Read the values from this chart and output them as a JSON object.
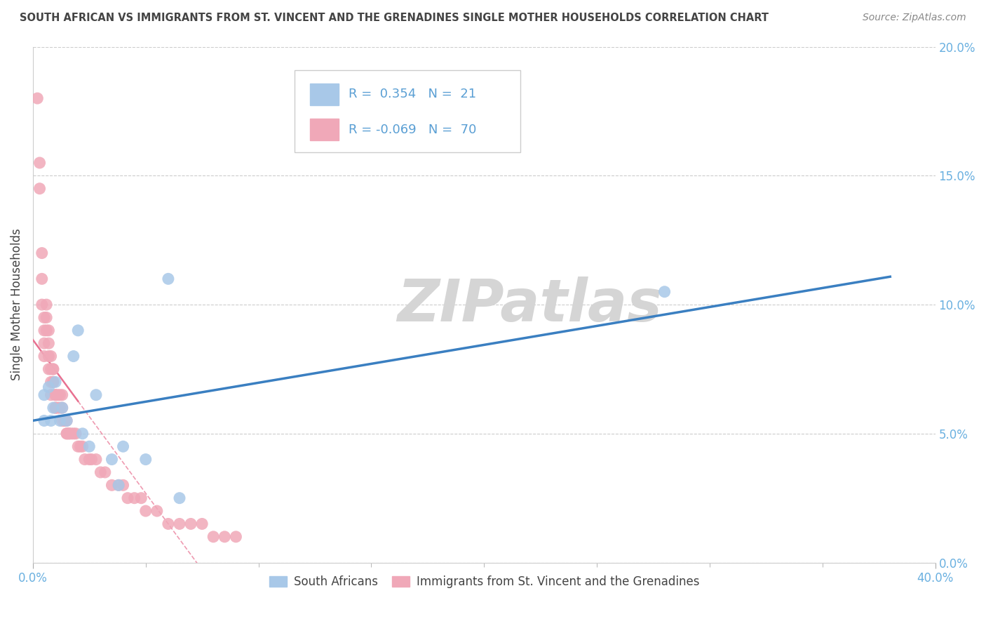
{
  "title": "SOUTH AFRICAN VS IMMIGRANTS FROM ST. VINCENT AND THE GRENADINES SINGLE MOTHER HOUSEHOLDS CORRELATION CHART",
  "source": "Source: ZipAtlas.com",
  "ylabel": "Single Mother Households",
  "watermark": "ZIPatlas",
  "blue_R": 0.354,
  "blue_N": 21,
  "pink_R": -0.069,
  "pink_N": 70,
  "xlim": [
    0.0,
    0.4
  ],
  "ylim": [
    0.0,
    0.2
  ],
  "xtick_vals": [
    0.0,
    0.4
  ],
  "xtick_minor": [
    0.05,
    0.1,
    0.15,
    0.2,
    0.25,
    0.3,
    0.35
  ],
  "ytick_vals": [
    0.0,
    0.05,
    0.1,
    0.15,
    0.2
  ],
  "blue_scatter_x": [
    0.005,
    0.005,
    0.007,
    0.008,
    0.009,
    0.01,
    0.012,
    0.013,
    0.015,
    0.018,
    0.02,
    0.022,
    0.025,
    0.028,
    0.035,
    0.038,
    0.04,
    0.05,
    0.06,
    0.065,
    0.28
  ],
  "blue_scatter_y": [
    0.065,
    0.055,
    0.068,
    0.055,
    0.06,
    0.07,
    0.055,
    0.06,
    0.055,
    0.08,
    0.09,
    0.05,
    0.045,
    0.065,
    0.04,
    0.03,
    0.045,
    0.04,
    0.11,
    0.025,
    0.105
  ],
  "pink_scatter_x": [
    0.002,
    0.003,
    0.003,
    0.004,
    0.004,
    0.004,
    0.005,
    0.005,
    0.005,
    0.005,
    0.006,
    0.006,
    0.006,
    0.007,
    0.007,
    0.007,
    0.007,
    0.008,
    0.008,
    0.008,
    0.008,
    0.009,
    0.009,
    0.009,
    0.009,
    0.01,
    0.01,
    0.01,
    0.01,
    0.011,
    0.011,
    0.012,
    0.012,
    0.013,
    0.013,
    0.013,
    0.014,
    0.014,
    0.015,
    0.015,
    0.015,
    0.016,
    0.016,
    0.017,
    0.018,
    0.019,
    0.02,
    0.021,
    0.022,
    0.023,
    0.025,
    0.026,
    0.028,
    0.03,
    0.032,
    0.035,
    0.038,
    0.04,
    0.042,
    0.045,
    0.048,
    0.05,
    0.055,
    0.06,
    0.065,
    0.07,
    0.075,
    0.08,
    0.085,
    0.09
  ],
  "pink_scatter_y": [
    0.18,
    0.155,
    0.145,
    0.12,
    0.11,
    0.1,
    0.095,
    0.09,
    0.085,
    0.08,
    0.1,
    0.095,
    0.09,
    0.09,
    0.085,
    0.08,
    0.075,
    0.08,
    0.075,
    0.07,
    0.065,
    0.075,
    0.075,
    0.07,
    0.07,
    0.065,
    0.065,
    0.06,
    0.06,
    0.065,
    0.06,
    0.065,
    0.06,
    0.065,
    0.06,
    0.055,
    0.055,
    0.055,
    0.055,
    0.05,
    0.05,
    0.05,
    0.05,
    0.05,
    0.05,
    0.05,
    0.045,
    0.045,
    0.045,
    0.04,
    0.04,
    0.04,
    0.04,
    0.035,
    0.035,
    0.03,
    0.03,
    0.03,
    0.025,
    0.025,
    0.025,
    0.02,
    0.02,
    0.015,
    0.015,
    0.015,
    0.015,
    0.01,
    0.01,
    0.01
  ],
  "blue_dot_color": "#a8c8e8",
  "pink_dot_color": "#f0a8b8",
  "blue_line_color": "#3a7fc1",
  "pink_line_color": "#e87090",
  "grid_color": "#cccccc",
  "bg_color": "#ffffff",
  "title_color": "#444444",
  "source_color": "#888888",
  "ylabel_color": "#444444",
  "tick_color": "#6ab0e0",
  "watermark_color": "#d5d5d5",
  "legend_box_color": "#cccccc",
  "legend_text_color": "#5a9fd4",
  "bottom_legend_text_color": "#444444"
}
